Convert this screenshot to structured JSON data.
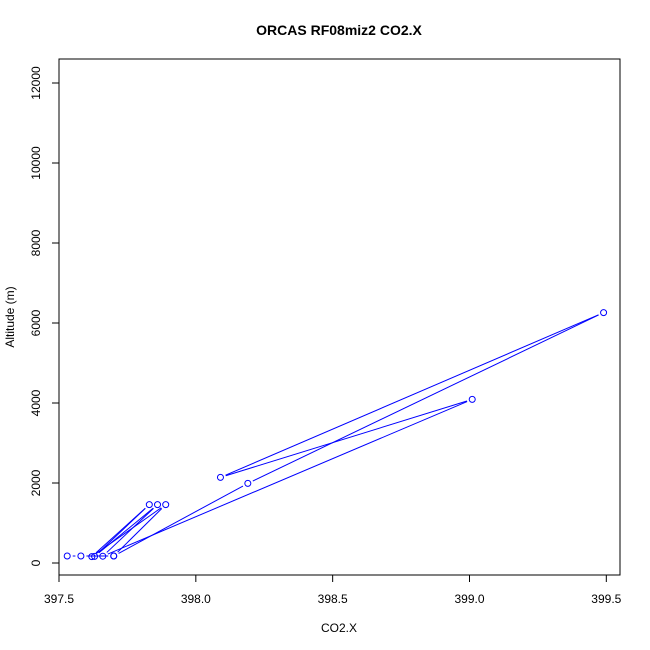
{
  "chart_data": {
    "type": "line",
    "title": "ORCAS RF08miz2 CO2.X",
    "xlabel": "CO2.X",
    "ylabel": "Altitude (m)",
    "xlim": [
      397.5,
      399.55
    ],
    "ylim": [
      -300,
      12600
    ],
    "x_ticks": [
      397.5,
      398.0,
      398.5,
      399.0,
      399.5
    ],
    "x_tick_labels": [
      "397.5",
      "398.0",
      "398.5",
      "399.0",
      "399.5"
    ],
    "y_ticks": [
      0,
      2000,
      4000,
      6000,
      8000,
      10000,
      12000
    ],
    "y_tick_labels": [
      "0",
      "2000",
      "4000",
      "6000",
      "8000",
      "10000",
      "12000"
    ],
    "grid": false,
    "series": [
      {
        "color": "#0000ff",
        "marker": "open-circle",
        "points": [
          [
            397.7,
            175
          ],
          [
            398.19,
            1990
          ],
          [
            399.49,
            6260
          ],
          [
            398.09,
            2140
          ],
          [
            399.01,
            4090
          ],
          [
            397.66,
            170
          ],
          [
            397.86,
            1460
          ],
          [
            397.63,
            165
          ],
          [
            397.83,
            1460
          ],
          [
            397.62,
            160
          ],
          [
            397.89,
            1460
          ],
          [
            397.7,
            175
          ],
          [
            397.58,
            175
          ],
          [
            397.53,
            175
          ]
        ]
      }
    ]
  }
}
